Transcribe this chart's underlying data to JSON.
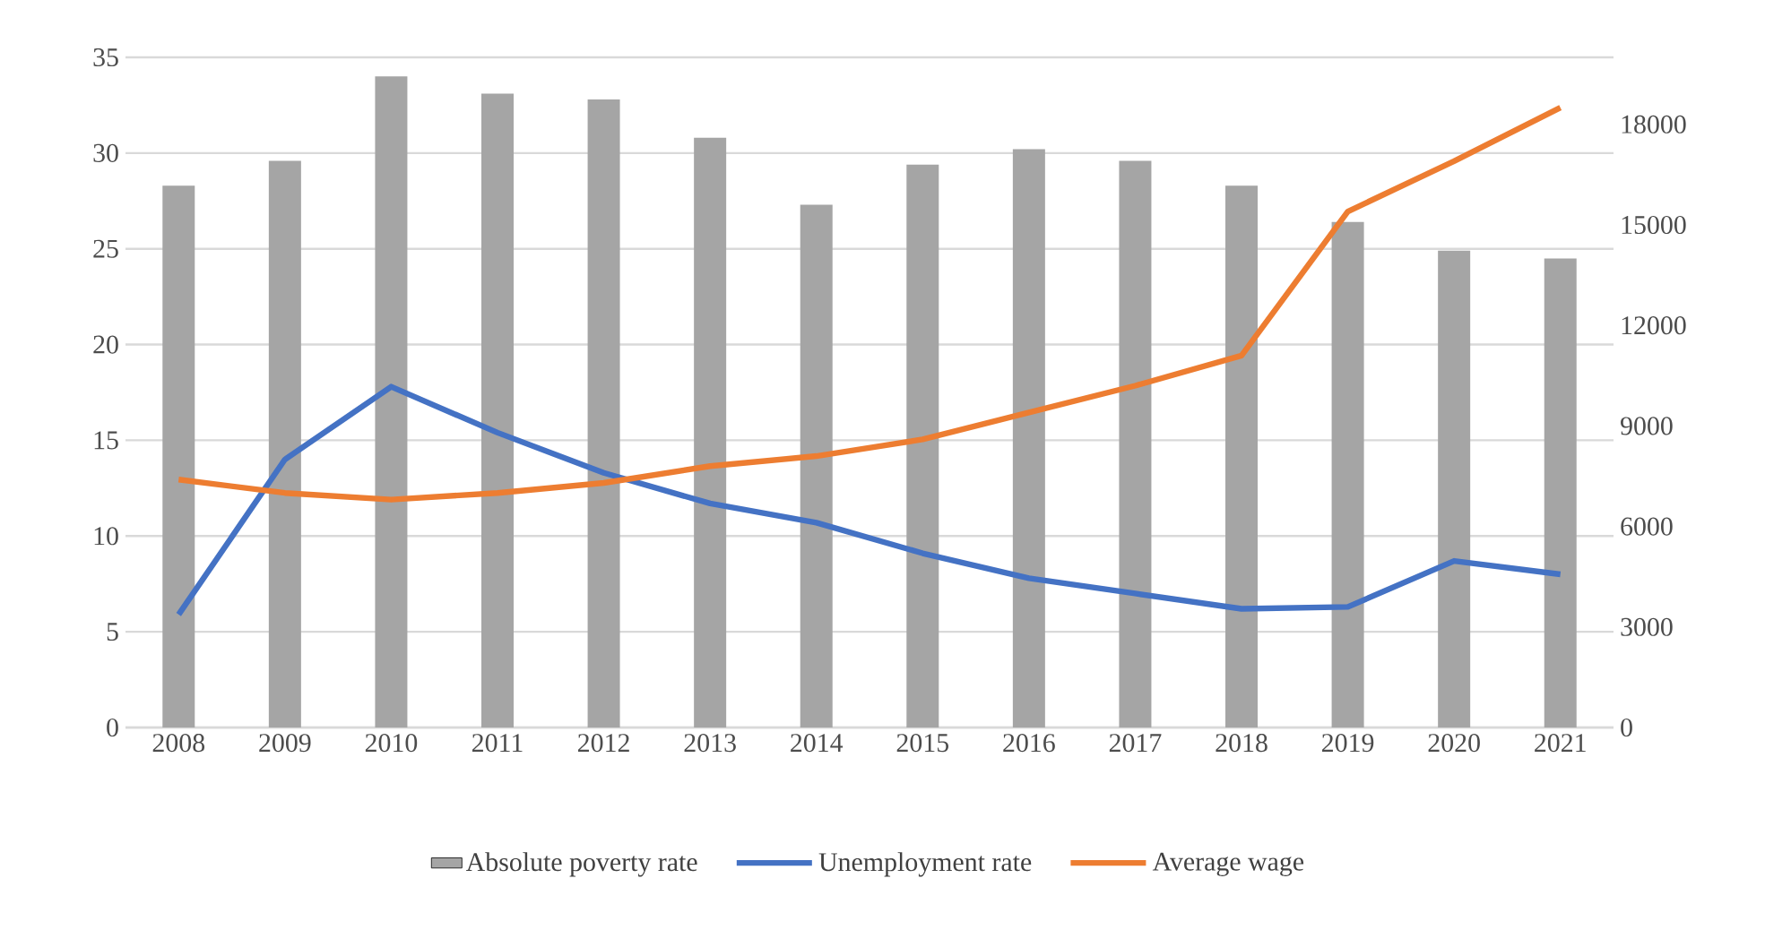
{
  "chart_data": {
    "type": "bar",
    "categories": [
      "2008",
      "2009",
      "2010",
      "2011",
      "2012",
      "2013",
      "2014",
      "2015",
      "2016",
      "2017",
      "2018",
      "2019",
      "2020",
      "2021"
    ],
    "series": [
      {
        "name": "Absolute poverty rate",
        "color": "#a5a5a5",
        "values": [
          28.3,
          29.6,
          34.0,
          33.1,
          32.8,
          30.8,
          27.3,
          29.4,
          30.2,
          29.6,
          28.3,
          26.4,
          24.9,
          24.5
        ]
      },
      {
        "name": "Unemployment rate",
        "type": "line",
        "color": "#4472c4",
        "values": [
          5.9,
          14.0,
          17.8,
          15.4,
          13.3,
          11.7,
          10.7,
          9.1,
          7.8,
          7.0,
          6.2,
          6.3,
          8.7,
          8.0
        ]
      },
      {
        "name": "Average wage",
        "type": "line",
        "axis": "y2",
        "color": "#ed7d31",
        "values": [
          7400,
          7000,
          6800,
          7000,
          7300,
          7800,
          8100,
          8600,
          9400,
          10200,
          11100,
          15400,
          16900,
          18500
        ]
      }
    ],
    "ylim": [
      0,
      35
    ],
    "yticks": [
      0,
      5,
      10,
      15,
      20,
      25,
      30,
      35
    ],
    "y2lim": [
      0,
      20000
    ],
    "y2ticks": [
      0,
      3000,
      6000,
      9000,
      12000,
      15000,
      18000
    ],
    "grid": "y",
    "legend": "bottom"
  }
}
